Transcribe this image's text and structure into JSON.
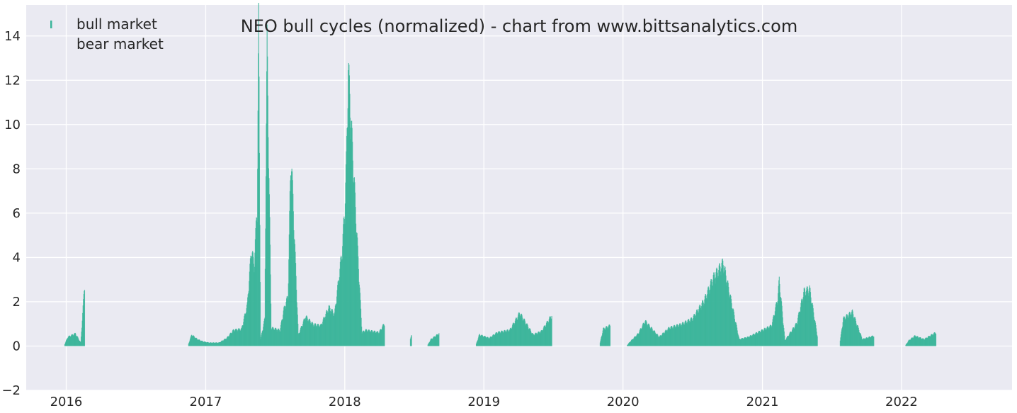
{
  "chart_data": {
    "type": "bar",
    "title": "NEO bull cycles (normalized)  - chart from www.bittsanalytics.com",
    "xlabel": "",
    "ylabel": "",
    "xlim": [
      "2015-09-18",
      "2022-10-18"
    ],
    "ylim": [
      -2,
      15.4
    ],
    "x_ticks": [
      "2016",
      "2017",
      "2018",
      "2019",
      "2020",
      "2021",
      "2022"
    ],
    "y_ticks": [
      -2,
      0,
      2,
      4,
      6,
      8,
      10,
      12,
      14
    ],
    "grid": true,
    "legend_position": "top-left",
    "legend": [
      {
        "label": "bull market",
        "color": "#3bb59a"
      },
      {
        "label": "bear market",
        "color": "#eaeaf2"
      }
    ],
    "colors": {
      "bull": "#3bb59a",
      "background": "#eaeaf2",
      "grid": "#ffffff"
    },
    "series": [
      {
        "name": "bull market",
        "points": [
          [
            "2016-01-05",
            0.4
          ],
          [
            "2016-01-25",
            0.55
          ],
          [
            "2016-02-08",
            0.15
          ],
          [
            "2016-02-18",
            2.7
          ],
          [
            "2016-11-25",
            0.5
          ],
          [
            "2016-12-10",
            0.3
          ],
          [
            "2016-12-25",
            0.2
          ],
          [
            "2017-01-10",
            0.15
          ],
          [
            "2017-02-05",
            0.15
          ],
          [
            "2017-02-25",
            0.35
          ],
          [
            "2017-03-15",
            0.7
          ],
          [
            "2017-04-05",
            0.75
          ],
          [
            "2017-04-20",
            1.8
          ],
          [
            "2017-05-01",
            4.3
          ],
          [
            "2017-05-08",
            3.5
          ],
          [
            "2017-05-16",
            6.2
          ],
          [
            "2017-05-20",
            14.1
          ],
          [
            "2017-05-25",
            0.3
          ],
          [
            "2017-06-05",
            1.2
          ],
          [
            "2017-06-08",
            8.0
          ],
          [
            "2017-06-11",
            13.2
          ],
          [
            "2017-06-22",
            0.8
          ],
          [
            "2017-07-15",
            0.7
          ],
          [
            "2017-07-25",
            1.6
          ],
          [
            "2017-08-05",
            2.2
          ],
          [
            "2017-08-10",
            6.4
          ],
          [
            "2017-08-13",
            8.5
          ],
          [
            "2017-09-01",
            0.5
          ],
          [
            "2017-09-20",
            1.3
          ],
          [
            "2017-10-10",
            0.95
          ],
          [
            "2017-10-30",
            0.9
          ],
          [
            "2017-11-20",
            1.7
          ],
          [
            "2017-12-05",
            1.4
          ],
          [
            "2017-12-25",
            4.2
          ],
          [
            "2018-01-01",
            6.1
          ],
          [
            "2018-01-05",
            8.0
          ],
          [
            "2018-01-10",
            12.2
          ],
          [
            "2018-02-15",
            0.6
          ],
          [
            "2018-02-25",
            0.7
          ],
          [
            "2018-04-01",
            0.6
          ],
          [
            "2018-04-15",
            1.0
          ],
          [
            "2018-06-25",
            0.45
          ],
          [
            "2018-08-15",
            0.3
          ],
          [
            "2018-09-05",
            0.55
          ],
          [
            "2018-12-20",
            0.5
          ],
          [
            "2019-01-15",
            0.35
          ],
          [
            "2019-02-05",
            0.6
          ],
          [
            "2019-03-10",
            0.7
          ],
          [
            "2019-04-05",
            1.45
          ],
          [
            "2019-05-10",
            0.5
          ],
          [
            "2019-06-01",
            0.65
          ],
          [
            "2019-06-28",
            1.35
          ],
          [
            "2019-11-10",
            0.75
          ],
          [
            "2019-11-28",
            0.9
          ],
          [
            "2020-01-20",
            0.2
          ],
          [
            "2020-02-10",
            0.55
          ],
          [
            "2020-02-28",
            1.1
          ],
          [
            "2020-04-05",
            0.4
          ],
          [
            "2020-05-01",
            0.8
          ],
          [
            "2020-06-01",
            0.95
          ],
          [
            "2020-07-01",
            1.2
          ],
          [
            "2020-08-01",
            2.0
          ],
          [
            "2020-08-25",
            3.0
          ],
          [
            "2020-09-20",
            3.65
          ],
          [
            "2020-11-01",
            0.3
          ],
          [
            "2020-11-25",
            0.4
          ],
          [
            "2021-01-01",
            0.7
          ],
          [
            "2021-01-25",
            0.9
          ],
          [
            "2021-02-10",
            2.1
          ],
          [
            "2021-02-14",
            2.9
          ],
          [
            "2021-03-01",
            0.25
          ],
          [
            "2021-04-01",
            1.0
          ],
          [
            "2021-04-20",
            2.4
          ],
          [
            "2021-05-05",
            2.5
          ],
          [
            "2021-05-25",
            0.45
          ],
          [
            "2021-08-01",
            1.2
          ],
          [
            "2021-08-25",
            1.5
          ],
          [
            "2021-09-20",
            0.3
          ],
          [
            "2021-10-20",
            0.45
          ],
          [
            "2022-01-20",
            0.25
          ],
          [
            "2022-02-05",
            0.45
          ],
          [
            "2022-03-01",
            0.3
          ],
          [
            "2022-04-01",
            0.6
          ]
        ]
      }
    ]
  }
}
